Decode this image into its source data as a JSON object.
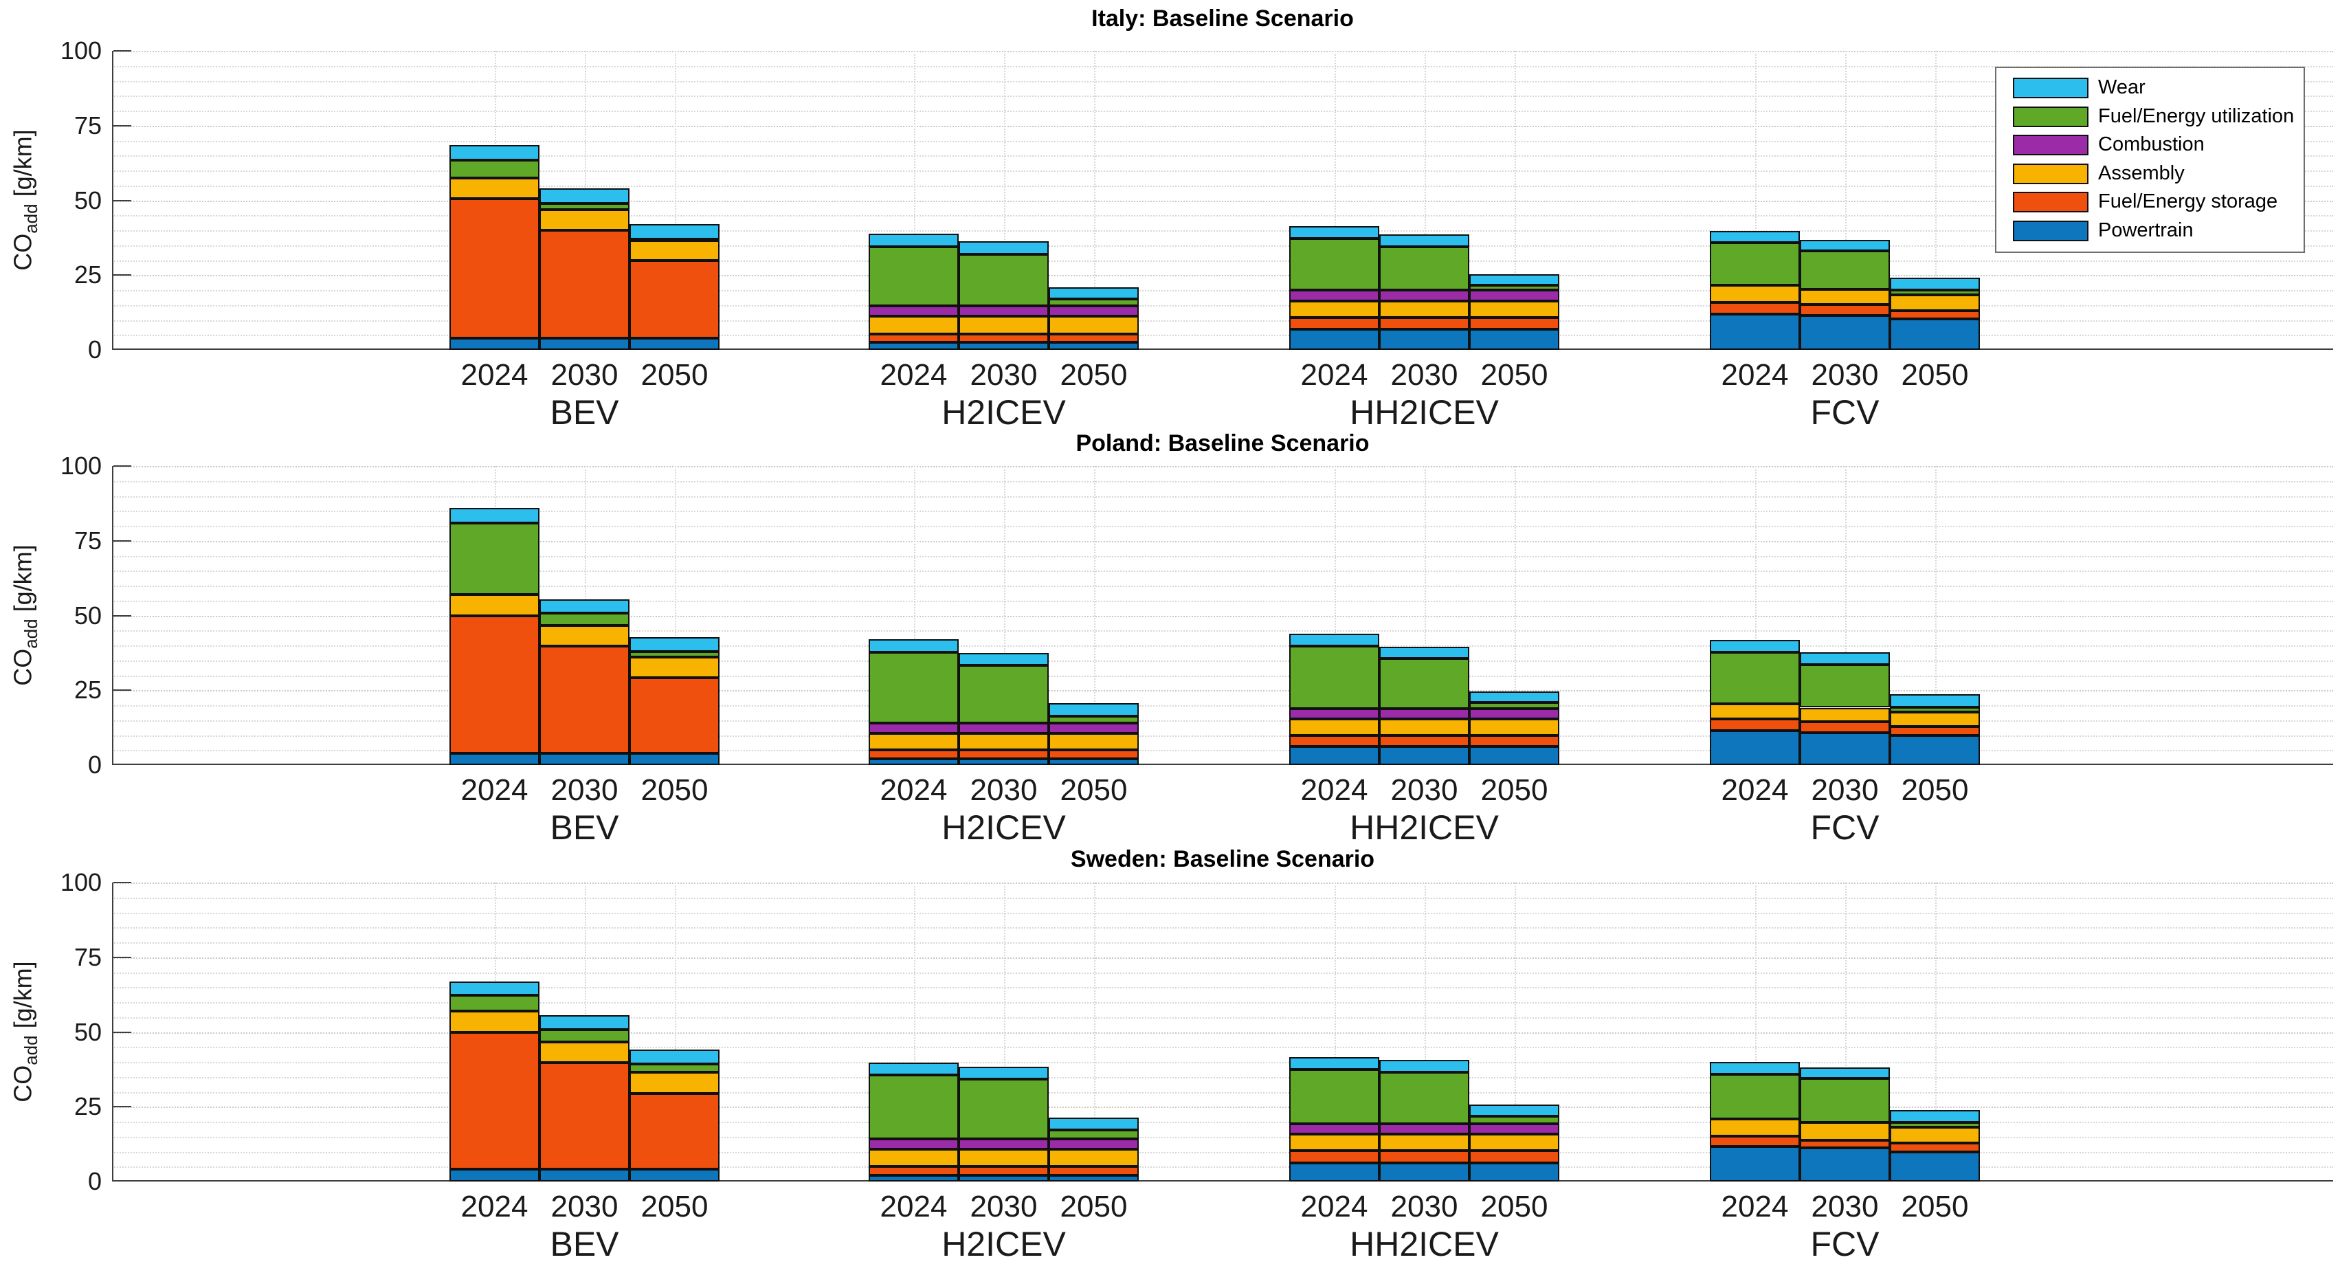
{
  "axes": {
    "ylabel_main": "CO",
    "ylabel_sub": "add",
    "ylabel_unit": " [g/km]",
    "yticks": [
      0,
      25,
      50,
      75,
      100
    ],
    "ylim": [
      0,
      100
    ]
  },
  "legend": {
    "position": "top-right",
    "entries": [
      {
        "label": "Wear",
        "color": "#2CBEEC"
      },
      {
        "label": "Fuel/Energy utilization",
        "color": "#60A828"
      },
      {
        "label": "Combustion",
        "color": "#9B2BA7"
      },
      {
        "label": "Assembly",
        "color": "#F8B301"
      },
      {
        "label": "Fuel/Energy storage",
        "color": "#F0500D"
      },
      {
        "label": "Powertrain",
        "color": "#0D76BD"
      }
    ]
  },
  "chart_data": [
    {
      "type": "bar",
      "stacked": true,
      "title": "Italy: Baseline Scenario",
      "grid": true,
      "ylim": [
        0,
        100
      ],
      "groups": [
        "BEV",
        "H2ICEV",
        "HH2ICEV",
        "FCV"
      ],
      "years": [
        "2024",
        "2030",
        "2050"
      ],
      "series": [
        {
          "name": "Powertrain",
          "color": "#0D76BD",
          "values": [
            [
              4.0,
              4.0,
              4.0
            ],
            [
              2.5,
              2.5,
              2.5
            ],
            [
              6.9,
              6.9,
              6.9
            ],
            [
              12.0,
              11.6,
              10.3
            ]
          ]
        },
        {
          "name": "Fuel/Energy storage",
          "color": "#F0500D",
          "values": [
            [
              46.5,
              36.0,
              26.0
            ],
            [
              2.8,
              2.8,
              2.8
            ],
            [
              3.9,
              3.9,
              3.9
            ],
            [
              3.8,
              3.5,
              2.8
            ]
          ]
        },
        {
          "name": "Assembly",
          "color": "#F8B301",
          "values": [
            [
              7.0,
              7.0,
              6.5
            ],
            [
              5.9,
              5.9,
              5.9
            ],
            [
              5.6,
              5.6,
              5.6
            ],
            [
              5.8,
              5.1,
              5.4
            ]
          ]
        },
        {
          "name": "Combustion",
          "color": "#9B2BA7",
          "values": [
            [
              0,
              0,
              0
            ],
            [
              3.5,
              3.5,
              3.5
            ],
            [
              3.5,
              3.5,
              3.5
            ],
            [
              0,
              0,
              0
            ]
          ]
        },
        {
          "name": "Fuel/Energy utilization",
          "color": "#60A828",
          "values": [
            [
              6.0,
              2.0,
              0.5
            ],
            [
              19.7,
              17.3,
              2.3
            ],
            [
              17.3,
              14.7,
              1.7
            ],
            [
              14.2,
              12.8,
              1.4
            ]
          ]
        },
        {
          "name": "Wear",
          "color": "#2CBEEC",
          "values": [
            [
              5.0,
              5.0,
              5.0
            ],
            [
              4.4,
              4.3,
              4.0
            ],
            [
              4.2,
              4.0,
              3.6
            ],
            [
              4.0,
              3.9,
              4.2
            ]
          ]
        }
      ]
    },
    {
      "type": "bar",
      "stacked": true,
      "title": "Poland: Baseline Scenario",
      "grid": true,
      "ylim": [
        0,
        100
      ],
      "groups": [
        "BEV",
        "H2ICEV",
        "HH2ICEV",
        "FCV"
      ],
      "years": [
        "2024",
        "2030",
        "2050"
      ],
      "series": [
        {
          "name": "Powertrain",
          "color": "#0D76BD",
          "values": [
            [
              4.0,
              4.0,
              4.0
            ],
            [
              2.0,
              2.0,
              2.0
            ],
            [
              6.1,
              6.1,
              6.1
            ],
            [
              11.6,
              10.9,
              9.9
            ]
          ]
        },
        {
          "name": "Fuel/Energy storage",
          "color": "#F0500D",
          "values": [
            [
              46.0,
              35.7,
              25.3
            ],
            [
              3.0,
              3.0,
              3.0
            ],
            [
              3.8,
              3.8,
              3.8
            ],
            [
              3.9,
              3.6,
              2.9
            ]
          ]
        },
        {
          "name": "Assembly",
          "color": "#F8B301",
          "values": [
            [
              7.0,
              7.0,
              6.8
            ],
            [
              5.5,
              5.5,
              5.5
            ],
            [
              5.6,
              5.6,
              5.6
            ],
            [
              5.0,
              4.7,
              5.0
            ]
          ]
        },
        {
          "name": "Combustion",
          "color": "#9B2BA7",
          "values": [
            [
              0,
              0,
              0
            ],
            [
              3.5,
              3.5,
              3.5
            ],
            [
              3.3,
              3.3,
              3.3
            ],
            [
              0,
              0,
              0
            ]
          ]
        },
        {
          "name": "Fuel/Energy utilization",
          "color": "#60A828",
          "values": [
            [
              24.0,
              4.0,
              1.8
            ],
            [
              23.6,
              19.4,
              2.4
            ],
            [
              20.9,
              16.8,
              2.1
            ],
            [
              17.1,
              14.4,
              1.5
            ]
          ]
        },
        {
          "name": "Wear",
          "color": "#2CBEEC",
          "values": [
            [
              5.0,
              4.8,
              4.8
            ],
            [
              4.5,
              4.1,
              4.4
            ],
            [
              4.3,
              4.0,
              3.8
            ],
            [
              4.3,
              4.2,
              4.3
            ]
          ]
        }
      ]
    },
    {
      "type": "bar",
      "stacked": true,
      "title": "Sweden: Baseline Scenario",
      "grid": true,
      "ylim": [
        0,
        100
      ],
      "groups": [
        "BEV",
        "H2ICEV",
        "HH2ICEV",
        "FCV"
      ],
      "years": [
        "2024",
        "2030",
        "2050"
      ],
      "series": [
        {
          "name": "Powertrain",
          "color": "#0D76BD",
          "values": [
            [
              4.1,
              4.1,
              4.1
            ],
            [
              2.1,
              2.1,
              2.1
            ],
            [
              6.3,
              6.3,
              6.3
            ],
            [
              11.7,
              11.3,
              9.9
            ]
          ]
        },
        {
          "name": "Fuel/Energy storage",
          "color": "#F0500D",
          "values": [
            [
              45.9,
              35.7,
              25.4
            ],
            [
              2.9,
              2.9,
              2.9
            ],
            [
              4.0,
              4.0,
              4.0
            ],
            [
              3.5,
              2.5,
              3.0
            ]
          ]
        },
        {
          "name": "Assembly",
          "color": "#F8B301",
          "values": [
            [
              7.1,
              6.9,
              7.1
            ],
            [
              5.9,
              5.9,
              5.9
            ],
            [
              5.6,
              5.6,
              5.6
            ],
            [
              5.8,
              6.0,
              5.3
            ]
          ]
        },
        {
          "name": "Combustion",
          "color": "#9B2BA7",
          "values": [
            [
              0,
              0,
              0
            ],
            [
              3.4,
              3.4,
              3.4
            ],
            [
              3.4,
              3.4,
              3.4
            ],
            [
              0,
              0,
              0
            ]
          ]
        },
        {
          "name": "Fuel/Energy utilization",
          "color": "#60A828",
          "values": [
            [
              5.1,
              4.0,
              2.8
            ],
            [
              21.3,
              20.0,
              2.9
            ],
            [
              18.2,
              17.3,
              2.5
            ],
            [
              14.9,
              14.6,
              1.6
            ]
          ]
        },
        {
          "name": "Wear",
          "color": "#2CBEEC",
          "values": [
            [
              4.8,
              5.0,
              4.8
            ],
            [
              4.2,
              4.2,
              4.2
            ],
            [
              4.0,
              4.0,
              4.0
            ],
            [
              4.1,
              3.7,
              4.1
            ]
          ]
        }
      ]
    }
  ]
}
